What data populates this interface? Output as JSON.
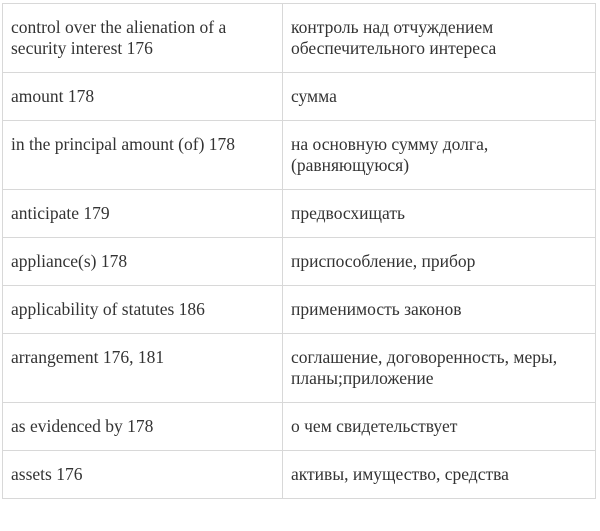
{
  "colors": {
    "text": "#333333",
    "border": "#d8d8d8",
    "background": "#ffffff"
  },
  "table": {
    "rows": [
      {
        "en": "control over the alienation of a security interest 176",
        "ru": "контроль над отчуждением обеспечительного интереса"
      },
      {
        "en": "amount 178",
        "ru": "сумма"
      },
      {
        "en": "in the principal amount (of) 178",
        "ru": "на основную сумму долга, (равняющуюся)"
      },
      {
        "en": "anticipate 179",
        "ru": "предвосхищать"
      },
      {
        "en": "appliance(s) 178",
        "ru": "приспособление, прибор"
      },
      {
        "en": "applicability of statutes 186",
        "ru": "применимость законов"
      },
      {
        "en": "arrangement 176, 181",
        "ru": "соглашение, договоренность, меры, планы;приложение"
      },
      {
        "en": "as evidenced by 178",
        "ru": "о чем свидетельствует"
      },
      {
        "en": "assets 176",
        "ru": "активы, имущество, средства"
      }
    ]
  }
}
